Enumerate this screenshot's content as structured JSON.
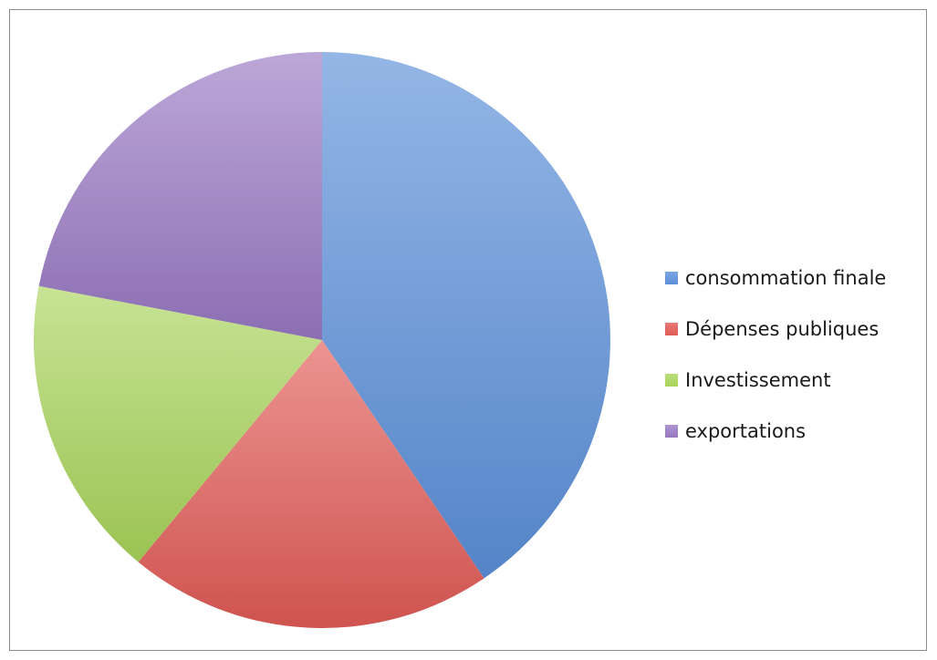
{
  "chart_data": {
    "type": "pie",
    "slices": [
      {
        "label": "consommation finale",
        "value": 40.5,
        "color": "#5b8fd9"
      },
      {
        "label": "Dépenses publiques",
        "value": 20.5,
        "color": "#e15a56"
      },
      {
        "label": "Investissement",
        "value": 17.0,
        "color": "#a9d45a"
      },
      {
        "label": "exportations",
        "value": 22.0,
        "color": "#9878c3"
      }
    ],
    "legend_position": "right",
    "title": ""
  }
}
